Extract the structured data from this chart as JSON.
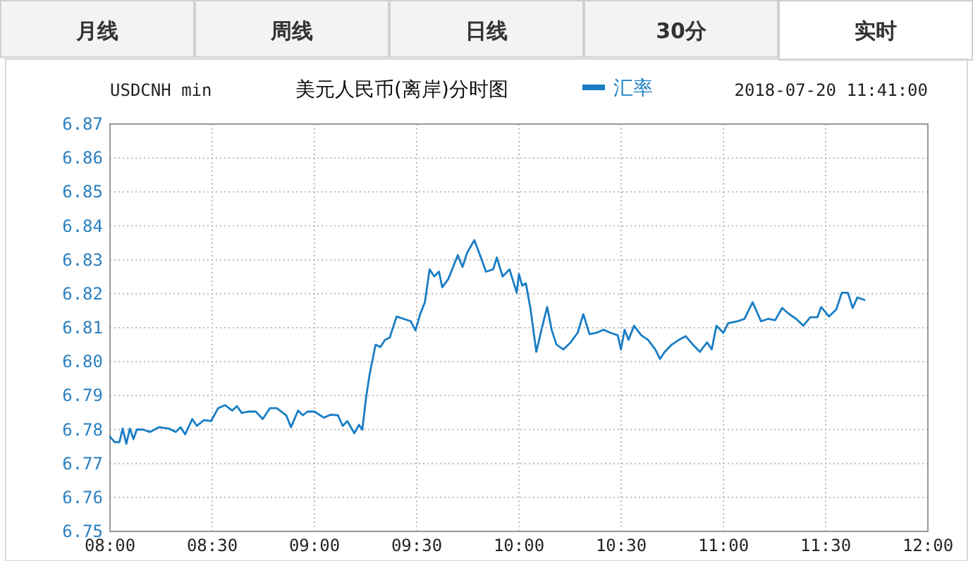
{
  "chart_data": {
    "type": "line",
    "title": "美元人民币(离岸)分时图",
    "subtitle": "USDCNH min",
    "annotations": [
      "月线",
      "周线",
      "日线",
      "30分",
      "实时",
      "2018-07-20 11:41:00"
    ],
    "legend": "top",
    "grid": true,
    "marker": "none",
    "line_style": "solid",
    "xlim": [
      8,
      12
    ],
    "xticks": [
      {
        "value": 8,
        "label": "08:00"
      },
      {
        "value": 8.5,
        "label": "08:30"
      },
      {
        "value": 9,
        "label": "09:00"
      },
      {
        "value": 9.5,
        "label": "09:30"
      },
      {
        "value": 10,
        "label": "10:00"
      },
      {
        "value": 10.5,
        "label": "10:30"
      },
      {
        "value": 11,
        "label": "11:00"
      },
      {
        "value": 11.5,
        "label": "11:30"
      },
      {
        "value": 12,
        "label": "12:00"
      }
    ],
    "ylim": [
      6.75,
      6.87
    ],
    "yticks": [
      {
        "value": 6.75,
        "label": "6.75"
      },
      {
        "value": 6.76,
        "label": "6.76"
      },
      {
        "value": 6.77,
        "label": "6.77"
      },
      {
        "value": 6.78,
        "label": "6.78"
      },
      {
        "value": 6.79,
        "label": "6.79"
      },
      {
        "value": 6.8,
        "label": "6.80"
      },
      {
        "value": 6.81,
        "label": "6.81"
      },
      {
        "value": 6.82,
        "label": "6.82"
      },
      {
        "value": 6.83,
        "label": "6.83"
      },
      {
        "value": 6.84,
        "label": "6.84"
      },
      {
        "value": 6.85,
        "label": "6.85"
      },
      {
        "value": 6.86,
        "label": "6.86"
      },
      {
        "value": 6.87,
        "label": "6.87"
      }
    ],
    "x": [
      8.0,
      8.023,
      8.046,
      8.062,
      8.08,
      8.097,
      8.115,
      8.131,
      8.161,
      8.195,
      8.241,
      8.287,
      8.322,
      8.345,
      8.368,
      8.402,
      8.425,
      8.46,
      8.494,
      8.529,
      8.563,
      8.598,
      8.621,
      8.644,
      8.678,
      8.713,
      8.747,
      8.782,
      8.816,
      8.862,
      8.885,
      8.92,
      8.943,
      8.966,
      9.0,
      9.046,
      9.08,
      9.115,
      9.138,
      9.161,
      9.195,
      9.218,
      9.234,
      9.253,
      9.271,
      9.299,
      9.322,
      9.345,
      9.368,
      9.402,
      9.437,
      9.471,
      9.494,
      9.517,
      9.54,
      9.563,
      9.586,
      9.609,
      9.625,
      9.655,
      9.678,
      9.701,
      9.724,
      9.747,
      9.782,
      9.805,
      9.839,
      9.874,
      9.892,
      9.92,
      9.954,
      9.989,
      10.0,
      10.016,
      10.034,
      10.057,
      10.085,
      10.115,
      10.138,
      10.161,
      10.184,
      10.218,
      10.253,
      10.287,
      10.315,
      10.345,
      10.379,
      10.414,
      10.448,
      10.483,
      10.499,
      10.517,
      10.536,
      10.563,
      10.598,
      10.632,
      10.667,
      10.69,
      10.713,
      10.747,
      10.782,
      10.816,
      10.851,
      10.885,
      10.92,
      10.943,
      10.966,
      11.0,
      11.023,
      11.069,
      11.103,
      11.143,
      11.184,
      11.218,
      11.253,
      11.287,
      11.322,
      11.356,
      11.391,
      11.425,
      11.46,
      11.478,
      11.517,
      11.552,
      11.579,
      11.609,
      11.632,
      11.655,
      11.69
    ],
    "series": [
      {
        "name": "汇率",
        "color": "#1a7dc4",
        "values": [
          6.7779,
          6.7763,
          6.7763,
          6.7803,
          6.7758,
          6.7803,
          6.7772,
          6.78,
          6.78,
          6.7793,
          6.7807,
          6.7803,
          6.7793,
          6.7807,
          6.7786,
          6.7831,
          6.7811,
          6.7828,
          6.7825,
          6.7863,
          6.7872,
          6.7856,
          6.7869,
          6.7849,
          6.7853,
          6.7853,
          6.7831,
          6.7863,
          6.7863,
          6.7842,
          6.7807,
          6.7856,
          6.7842,
          6.7853,
          6.7853,
          6.7835,
          6.7844,
          6.7842,
          6.7811,
          6.7825,
          6.7789,
          6.7814,
          6.78,
          6.7897,
          6.7967,
          6.805,
          6.8043,
          6.8064,
          6.8071,
          6.8133,
          6.8126,
          6.8119,
          6.8092,
          6.814,
          6.8175,
          6.8272,
          6.8251,
          6.8265,
          6.8219,
          6.8244,
          6.8279,
          6.8314,
          6.8279,
          6.8321,
          6.8358,
          6.8321,
          6.8265,
          6.8272,
          6.8307,
          6.8251,
          6.8272,
          6.8203,
          6.8258,
          6.8224,
          6.8231,
          6.8154,
          6.8029,
          6.8106,
          6.8161,
          6.8092,
          6.805,
          6.8036,
          6.8057,
          6.8085,
          6.814,
          6.8081,
          6.8085,
          6.8094,
          6.8085,
          6.8078,
          6.8036,
          6.8094,
          6.8064,
          6.8106,
          6.8078,
          6.8064,
          6.8036,
          6.8008,
          6.8029,
          6.805,
          6.8064,
          6.8075,
          6.805,
          6.8029,
          6.8057,
          6.8036,
          6.8106,
          6.8085,
          6.8113,
          6.8119,
          6.8126,
          6.8175,
          6.8119,
          6.8126,
          6.8122,
          6.8158,
          6.814,
          6.8126,
          6.8106,
          6.8131,
          6.8131,
          6.8161,
          6.8133,
          6.8154,
          6.8203,
          6.8203,
          6.8158,
          6.8189,
          6.8182
        ]
      }
    ]
  }
}
